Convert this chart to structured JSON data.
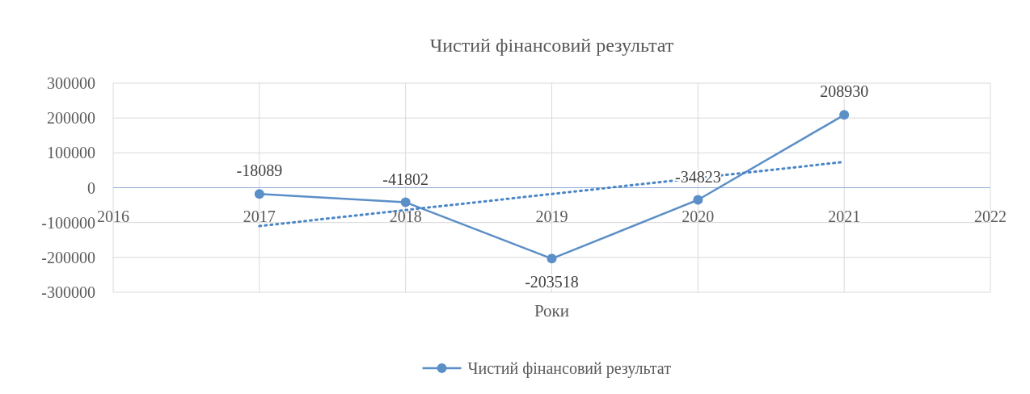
{
  "chart_data": {
    "type": "line",
    "title": "Чистий фінансовий результат",
    "xlabel": "Роки",
    "x": [
      2017,
      2018,
      2019,
      2020,
      2021
    ],
    "series": [
      {
        "name": "Чистий фінансовий результат",
        "color": "#5b8fc7",
        "values": [
          -18089,
          -41802,
          -203518,
          -34823,
          208930
        ],
        "value_labels": [
          "-18089",
          "-41802",
          "-203518",
          "-34823",
          "208930"
        ],
        "marker": "circle",
        "line_style": "solid"
      },
      {
        "type": "line",
        "color": "#4a86c5",
        "x": [
          2017,
          2021
        ],
        "values": [
          -110000,
          74000
        ],
        "marker": "none",
        "line_style": "dotted"
      }
    ],
    "xlim": [
      2016,
      2022
    ],
    "xticks": [
      2016,
      2017,
      2018,
      2019,
      2020,
      2021,
      2022
    ],
    "ylim": [
      -300000,
      300000
    ],
    "yticks": [
      -300000,
      -200000,
      -100000,
      0,
      100000,
      200000,
      300000
    ],
    "grid": true,
    "legend": "bottom"
  }
}
